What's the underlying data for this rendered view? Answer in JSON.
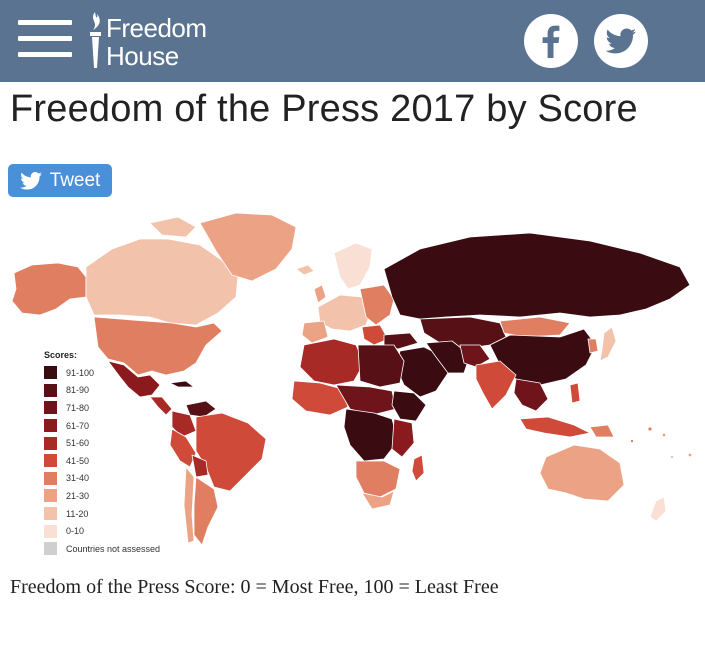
{
  "header": {
    "logo_line1": "Freedom",
    "logo_line2": "House",
    "menu_icon": "hamburger-menu-icon",
    "facebook_icon": "facebook-icon",
    "twitter_icon": "twitter-icon",
    "bar_color": "#5a7390"
  },
  "title": "Freedom of the Press 2017 by Score",
  "tweet_button": {
    "label": "Tweet",
    "color": "#4a90d9"
  },
  "legend": {
    "title": "Scores:",
    "items": [
      {
        "label": "91-100",
        "color": "#3b0b12"
      },
      {
        "label": "81-90",
        "color": "#561016"
      },
      {
        "label": "71-80",
        "color": "#6e141a"
      },
      {
        "label": "61-70",
        "color": "#8a1a1e"
      },
      {
        "label": "51-60",
        "color": "#a82a26"
      },
      {
        "label": "41-50",
        "color": "#cf4a38"
      },
      {
        "label": "31-40",
        "color": "#e07e62"
      },
      {
        "label": "21-30",
        "color": "#eca385"
      },
      {
        "label": "11-20",
        "color": "#f2c2aa"
      },
      {
        "label": "0-10",
        "color": "#fae0d4"
      },
      {
        "label": "Countries not assessed",
        "color": "#cfcfcf"
      }
    ]
  },
  "caption": "Freedom of the Press Score: 0 = Most Free, 100 = Least Free"
}
